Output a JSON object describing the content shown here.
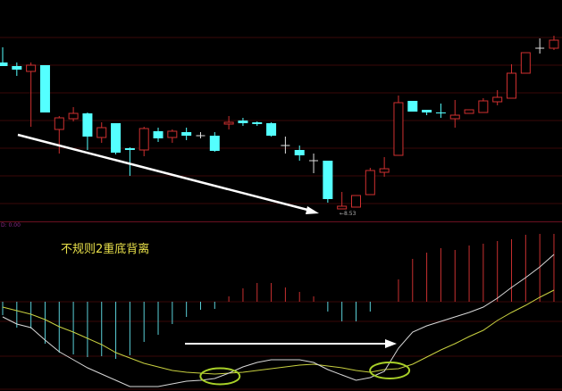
{
  "colors": {
    "up": "#d03030",
    "down": "#54ffff",
    "doji": "#e0e0e0",
    "dif": "#d8d8d8",
    "dea": "#c8d040",
    "hist_up": "#c83030",
    "hist_down": "#5ad0d8",
    "annotation": "#ffffff",
    "circle": "#a8d028",
    "grid": "#3a0808",
    "label": "#e8e04a"
  },
  "macd_panel": {
    "label": "D: 0.00"
  },
  "annotation": {
    "title": "不规则2重底背离",
    "low_marker": "←8.53"
  },
  "chart_data": [
    {
      "type": "candlestick",
      "ylim": [
        8.39,
        10.87
      ],
      "grid": true,
      "low_label": "←8.53",
      "ohlc": [
        [
          10.17,
          10.34,
          10.13,
          10.13
        ],
        [
          10.13,
          10.17,
          10.02,
          10.09
        ],
        [
          10.07,
          10.17,
          9.45,
          10.14
        ],
        [
          10.14,
          10.14,
          9.61,
          9.61
        ],
        [
          9.42,
          9.57,
          9.15,
          9.55
        ],
        [
          9.54,
          9.67,
          9.51,
          9.6
        ],
        [
          9.6,
          9.61,
          9.19,
          9.34
        ],
        [
          9.33,
          9.5,
          9.27,
          9.44
        ],
        [
          9.49,
          9.49,
          9.14,
          9.16
        ],
        [
          9.21,
          9.22,
          8.9,
          9.19
        ],
        [
          9.19,
          9.45,
          9.12,
          9.43
        ],
        [
          9.4,
          9.44,
          9.28,
          9.32
        ],
        [
          9.33,
          9.42,
          9.27,
          9.4
        ],
        [
          9.39,
          9.44,
          9.3,
          9.35
        ],
        [
          9.35,
          9.39,
          9.32,
          9.35
        ],
        [
          9.35,
          9.39,
          9.17,
          9.18
        ],
        [
          9.48,
          9.57,
          9.42,
          9.5
        ],
        [
          9.52,
          9.55,
          9.46,
          9.49
        ],
        [
          9.5,
          9.51,
          9.46,
          9.48
        ],
        [
          9.49,
          9.5,
          9.34,
          9.35
        ],
        [
          9.24,
          9.34,
          9.15,
          9.24
        ],
        [
          9.19,
          9.24,
          9.07,
          9.13
        ],
        [
          9.07,
          9.15,
          8.93,
          9.07
        ],
        [
          9.07,
          9.07,
          8.6,
          8.64
        ],
        [
          8.53,
          8.72,
          8.53,
          8.56
        ],
        [
          8.55,
          8.68,
          8.55,
          8.68
        ],
        [
          8.69,
          8.99,
          8.69,
          8.96
        ],
        [
          8.94,
          9.11,
          8.89,
          8.98
        ],
        [
          9.13,
          9.8,
          9.13,
          9.72
        ],
        [
          9.74,
          9.74,
          9.62,
          9.62
        ],
        [
          9.64,
          9.64,
          9.58,
          9.61
        ],
        [
          9.61,
          9.71,
          9.55,
          9.6
        ],
        [
          9.54,
          9.75,
          9.44,
          9.58
        ],
        [
          9.6,
          9.64,
          9.6,
          9.64
        ],
        [
          9.61,
          9.77,
          9.61,
          9.74
        ],
        [
          9.73,
          9.86,
          9.69,
          9.78
        ],
        [
          9.77,
          10.15,
          9.77,
          10.05
        ],
        [
          10.05,
          10.28,
          10.05,
          10.28
        ],
        [
          10.33,
          10.44,
          10.27,
          10.33
        ],
        [
          10.33,
          10.47,
          10.31,
          10.42
        ]
      ]
    },
    {
      "type": "macd",
      "ylim": [
        -0.1,
        0.09
      ],
      "zero_line": 0,
      "histogram": [
        -0.015,
        -0.029,
        -0.03,
        -0.047,
        -0.057,
        -0.059,
        -0.062,
        -0.061,
        -0.064,
        -0.06,
        -0.045,
        -0.037,
        -0.025,
        -0.017,
        -0.009,
        -0.008,
        0.006,
        0.015,
        0.021,
        0.021,
        0.016,
        0.011,
        0.006,
        -0.011,
        -0.022,
        -0.022,
        -0.011,
        0,
        0.025,
        0.048,
        0.055,
        0.06,
        0.058,
        0.063,
        0.065,
        0.068,
        0.07,
        0.075,
        0.076,
        0.076
      ],
      "dif": [
        -0.017,
        -0.025,
        -0.029,
        -0.043,
        -0.056,
        -0.065,
        -0.074,
        -0.081,
        -0.088,
        -0.095,
        -0.095,
        -0.095,
        -0.092,
        -0.089,
        -0.088,
        -0.086,
        -0.08,
        -0.073,
        -0.068,
        -0.065,
        -0.065,
        -0.065,
        -0.068,
        -0.076,
        -0.082,
        -0.088,
        -0.085,
        -0.078,
        -0.052,
        -0.034,
        -0.027,
        -0.022,
        -0.017,
        -0.012,
        -0.006,
        0.004,
        0.016,
        0.027,
        0.039,
        0.053
      ],
      "dea": [
        -0.006,
        -0.01,
        -0.014,
        -0.02,
        -0.028,
        -0.034,
        -0.041,
        -0.048,
        -0.057,
        -0.063,
        -0.069,
        -0.073,
        -0.077,
        -0.079,
        -0.08,
        -0.081,
        -0.08,
        -0.079,
        -0.077,
        -0.075,
        -0.073,
        -0.071,
        -0.07,
        -0.072,
        -0.074,
        -0.077,
        -0.079,
        -0.076,
        -0.075,
        -0.07,
        -0.062,
        -0.054,
        -0.047,
        -0.039,
        -0.032,
        -0.021,
        -0.012,
        -0.004,
        0.005,
        0.013
      ],
      "highlighted_crosses": [
        15,
        27
      ]
    }
  ]
}
